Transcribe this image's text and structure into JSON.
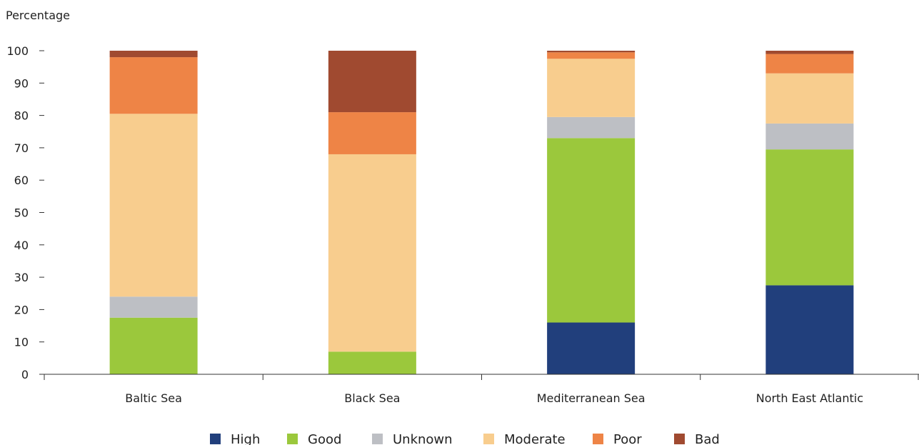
{
  "chart_data": {
    "type": "bar",
    "stacked": true,
    "ylabel": "Percentage",
    "xlabel": "",
    "ylim": [
      0,
      100
    ],
    "yticks": [
      0,
      10,
      20,
      30,
      40,
      50,
      60,
      70,
      80,
      90,
      100
    ],
    "grid": false,
    "legend_position": "bottom",
    "categories": [
      "Baltic Sea",
      "Black Sea",
      "Mediterranean Sea",
      "North East Atlantic"
    ],
    "series": [
      {
        "name": "High",
        "color": "#213f7c",
        "values": [
          0,
          0,
          16,
          27.5
        ]
      },
      {
        "name": "Good",
        "color": "#9bc83c",
        "values": [
          17.5,
          7,
          57,
          42
        ]
      },
      {
        "name": "Unknown",
        "color": "#bdbfc4",
        "values": [
          6.5,
          0,
          6.5,
          8
        ]
      },
      {
        "name": "Moderate",
        "color": "#f8cd8e",
        "values": [
          56.5,
          61,
          18,
          15.5
        ]
      },
      {
        "name": "Poor",
        "color": "#ee8446",
        "values": [
          17.5,
          13,
          2,
          6
        ]
      },
      {
        "name": "Bad",
        "color": "#a04a30",
        "values": [
          2,
          19,
          0.5,
          1
        ]
      }
    ]
  }
}
